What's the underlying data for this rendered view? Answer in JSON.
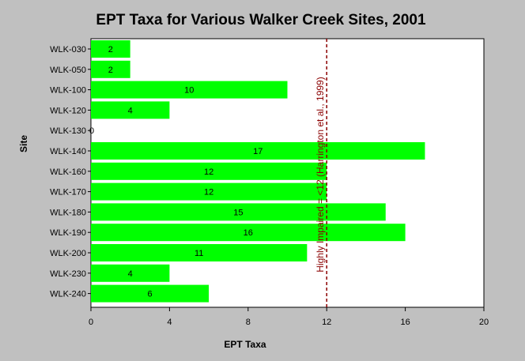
{
  "chart_data": {
    "type": "bar",
    "orientation": "horizontal",
    "title": "EPT Taxa for Various Walker Creek Sites, 2001",
    "xlabel": "EPT Taxa",
    "ylabel": "Site",
    "xlim": [
      0,
      20
    ],
    "xticks": [
      0,
      4,
      8,
      12,
      16,
      20
    ],
    "categories": [
      "WLK-030",
      "WLK-050",
      "WLK-100",
      "WLK-120",
      "WLK-130",
      "WLK-140",
      "WLK-160",
      "WLK-170",
      "WLK-180",
      "WLK-190",
      "WLK-200",
      "WLK-230",
      "WLK-240"
    ],
    "values": [
      2,
      2,
      10,
      4,
      0,
      17,
      12,
      12,
      15,
      16,
      11,
      4,
      6
    ],
    "bar_color": "#00ff00",
    "plot_background": "#ffffff",
    "grid": false,
    "reference_line": {
      "x": 12,
      "label": "Highly Impaired = <12 (Harrington et al., 1999)",
      "color": "#8b0000",
      "style": "dashed"
    }
  }
}
